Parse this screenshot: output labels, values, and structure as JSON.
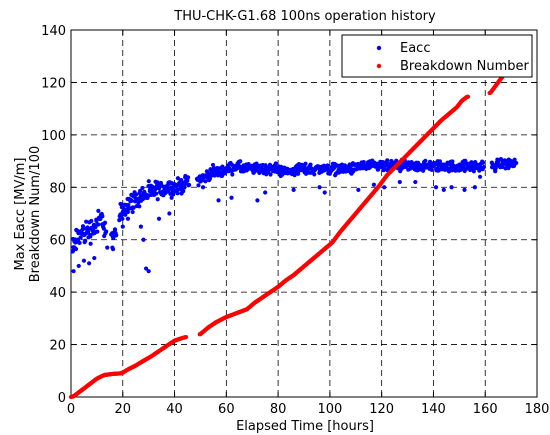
{
  "chart_data": {
    "type": "scatter",
    "title": "THU-CHK-G1.68 100ns operation history",
    "xlabel": "Elapsed Time [hours]",
    "ylabel": [
      "Max Eacc [MV/m]",
      "Breakdown Num/100"
    ],
    "xlim": [
      0,
      180
    ],
    "ylim": [
      0,
      140
    ],
    "xticks": [
      0,
      20,
      40,
      60,
      80,
      100,
      120,
      140,
      160,
      180
    ],
    "yticks": [
      0,
      20,
      40,
      60,
      80,
      100,
      120,
      140
    ],
    "grid": true,
    "legend_position": "top-right",
    "series": [
      {
        "name": "Eacc",
        "color": "#0000ff",
        "band_points": [
          [
            0.5,
            55
          ],
          [
            2,
            60
          ],
          [
            4,
            62
          ],
          [
            6,
            63
          ],
          [
            8,
            64
          ],
          [
            10,
            66
          ],
          [
            12,
            68
          ],
          [
            13,
            65
          ],
          [
            16,
            60
          ],
          [
            17,
            60
          ],
          [
            19,
            70
          ],
          [
            21,
            73
          ],
          [
            23,
            74
          ],
          [
            25,
            75
          ],
          [
            27,
            77
          ],
          [
            29,
            77
          ],
          [
            31,
            78
          ],
          [
            33,
            79
          ],
          [
            35,
            79
          ],
          [
            37,
            80
          ],
          [
            39,
            80
          ],
          [
            41,
            80
          ],
          [
            43,
            81
          ],
          [
            45,
            82
          ],
          [
            49,
            83
          ],
          [
            52,
            84
          ],
          [
            55,
            86
          ],
          [
            58,
            86
          ],
          [
            61,
            87
          ],
          [
            64,
            88
          ],
          [
            67,
            87
          ],
          [
            70,
            87
          ],
          [
            73,
            87
          ],
          [
            76,
            87
          ],
          [
            79,
            87
          ],
          [
            82,
            86
          ],
          [
            85,
            86
          ],
          [
            88,
            87
          ],
          [
            91,
            87
          ],
          [
            94,
            87
          ],
          [
            97,
            87
          ],
          [
            100,
            87
          ],
          [
            103,
            87
          ],
          [
            106,
            87
          ],
          [
            109,
            87
          ],
          [
            112,
            88
          ],
          [
            115,
            88
          ],
          [
            118,
            88
          ],
          [
            121,
            88
          ],
          [
            124,
            88
          ],
          [
            127,
            88
          ],
          [
            130,
            88
          ],
          [
            133,
            88
          ],
          [
            136,
            88
          ],
          [
            139,
            88
          ],
          [
            142,
            88
          ],
          [
            145,
            88
          ],
          [
            148,
            88
          ],
          [
            151,
            88
          ],
          [
            154,
            88
          ],
          [
            157,
            88
          ],
          [
            159,
            88
          ],
          [
            163,
            88
          ],
          [
            166,
            89
          ],
          [
            169,
            89
          ],
          [
            172,
            89
          ]
        ],
        "band_spread": [
          [
            0,
            8
          ],
          [
            16,
            6
          ],
          [
            19,
            6
          ],
          [
            45,
            4
          ],
          [
            49,
            3
          ],
          [
            110,
            3
          ],
          [
            160,
            3
          ],
          [
            172,
            3
          ]
        ],
        "outliers": [
          [
            1,
            48
          ],
          [
            3,
            50
          ],
          [
            5,
            52
          ],
          [
            7,
            51
          ],
          [
            9,
            53
          ],
          [
            14,
            57
          ],
          [
            16,
            57
          ],
          [
            20,
            65
          ],
          [
            22,
            68
          ],
          [
            27,
            65
          ],
          [
            28,
            60
          ],
          [
            29,
            49
          ],
          [
            30,
            48
          ],
          [
            34,
            68
          ],
          [
            38,
            70
          ],
          [
            51,
            80
          ],
          [
            57,
            75
          ],
          [
            62,
            76
          ],
          [
            72,
            75
          ],
          [
            75,
            78
          ],
          [
            86,
            79
          ],
          [
            96,
            80
          ],
          [
            98,
            78
          ],
          [
            111,
            79
          ],
          [
            117,
            81
          ],
          [
            121,
            80
          ],
          [
            127,
            82
          ],
          [
            133,
            82
          ],
          [
            141,
            80
          ],
          [
            144,
            79
          ],
          [
            147,
            80
          ],
          [
            152,
            79
          ],
          [
            156,
            80
          ],
          [
            158,
            84
          ]
        ]
      },
      {
        "name": "Breakdown Number",
        "color": "#ff0000",
        "points": [
          [
            0,
            0
          ],
          [
            1,
            0.3
          ],
          [
            2,
            1
          ],
          [
            4,
            2.5
          ],
          [
            6,
            4
          ],
          [
            8,
            5.5
          ],
          [
            10,
            7
          ],
          [
            12,
            8
          ],
          [
            13,
            8.4
          ],
          [
            16,
            8.8
          ],
          [
            19,
            9
          ],
          [
            20,
            9.3
          ],
          [
            22,
            10.5
          ],
          [
            25,
            12
          ],
          [
            28,
            13.8
          ],
          [
            31,
            15.5
          ],
          [
            34,
            17.5
          ],
          [
            37,
            19.5
          ],
          [
            40,
            21.5
          ],
          [
            43,
            22.5
          ],
          [
            45,
            23
          ],
          [
            50,
            24
          ],
          [
            53,
            26.5
          ],
          [
            56,
            28.5
          ],
          [
            60,
            30.5
          ],
          [
            64,
            32
          ],
          [
            68,
            33.5
          ],
          [
            71,
            36
          ],
          [
            74,
            38
          ],
          [
            77,
            40
          ],
          [
            80,
            42
          ],
          [
            83,
            44.5
          ],
          [
            86,
            46.5
          ],
          [
            89,
            49
          ],
          [
            92,
            51.5
          ],
          [
            95,
            54
          ],
          [
            98,
            56.5
          ],
          [
            101,
            59
          ],
          [
            104,
            63
          ],
          [
            107,
            66.5
          ],
          [
            110,
            70
          ],
          [
            113,
            73.5
          ],
          [
            116,
            77
          ],
          [
            119,
            80.5
          ],
          [
            122,
            84.5
          ],
          [
            125,
            87.5
          ],
          [
            128,
            90.5
          ],
          [
            131,
            93.5
          ],
          [
            134,
            96.5
          ],
          [
            137,
            99.5
          ],
          [
            140,
            102.5
          ],
          [
            143,
            105.5
          ],
          [
            146,
            108
          ],
          [
            149,
            110.5
          ],
          [
            151,
            113
          ],
          [
            153,
            114.5
          ],
          [
            156,
            115
          ],
          [
            162,
            116
          ],
          [
            165,
            120
          ],
          [
            168,
            124
          ],
          [
            170,
            126.5
          ],
          [
            172,
            130
          ]
        ],
        "gaps": [
          [
            44.5,
            49.5
          ],
          [
            153.5,
            161.5
          ]
        ]
      }
    ]
  }
}
